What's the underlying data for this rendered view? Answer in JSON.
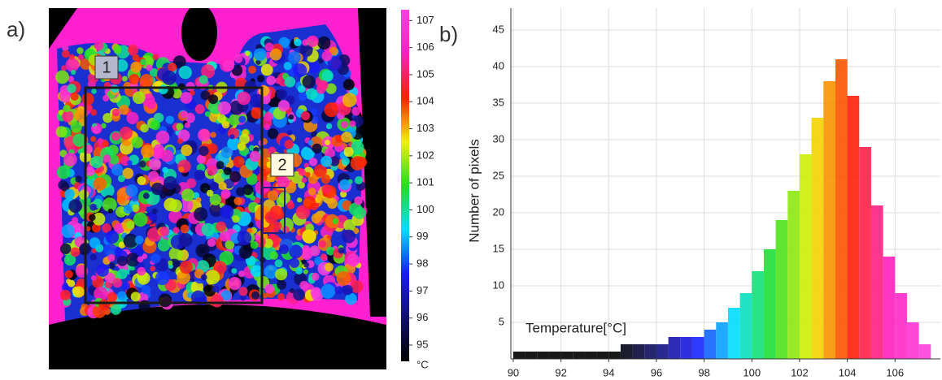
{
  "chart_data": [
    {
      "type": "thermal-image",
      "panel_label": "a)",
      "annotations": [
        "1",
        "2"
      ],
      "colorbar": {
        "lim": [
          94.4,
          107.4
        ],
        "ticks": [
          95,
          96,
          97,
          98,
          99,
          100,
          101,
          102,
          103,
          104,
          105,
          106,
          107
        ],
        "unit": "°C",
        "colors": [
          "#000000",
          "#10106e",
          "#1a1aff",
          "#00e0ff",
          "#20e020",
          "#f0f000",
          "#ff2000",
          "#ff20c0",
          "#ff40e0"
        ]
      }
    },
    {
      "type": "histogram",
      "panel_label": "b)",
      "xlabel": "Temperature[°C]",
      "ylabel": "Number of pixels",
      "bins": [
        90,
        90.5,
        91,
        91.5,
        92,
        92.5,
        93,
        93.5,
        94,
        94.5,
        95,
        95.5,
        96,
        96.5,
        97,
        97.5,
        98,
        98.5,
        99,
        99.5,
        100,
        100.5,
        101,
        101.5,
        102,
        102.5,
        103,
        103.5,
        104,
        104.5,
        105,
        105.5,
        106,
        106.5,
        107,
        107.5
      ],
      "values": [
        1,
        1,
        1,
        1,
        1,
        1,
        1,
        1,
        1,
        2,
        2,
        2,
        2,
        3,
        3,
        3,
        4,
        5,
        7,
        9,
        12,
        15,
        19,
        23,
        28,
        33,
        38,
        41,
        36,
        29,
        21,
        14,
        9,
        5,
        2
      ],
      "xlim": [
        89.9,
        107.9
      ],
      "ylim": [
        0,
        48
      ],
      "xticks": [
        90,
        92,
        94,
        96,
        98,
        100,
        102,
        104,
        106
      ],
      "yticks": [
        5,
        10,
        15,
        20,
        25,
        30,
        35,
        40,
        45
      ],
      "grid": true
    }
  ]
}
